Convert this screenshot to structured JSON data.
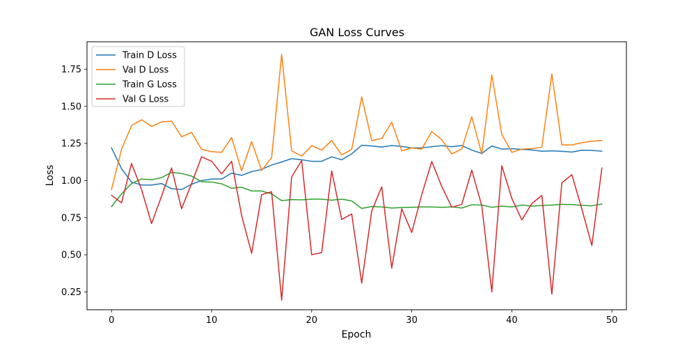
{
  "chart_data": {
    "type": "line",
    "title": "GAN Loss Curves",
    "xlabel": "Epoch",
    "ylabel": "Loss",
    "xlim": [
      -2.45,
      51.45
    ],
    "ylim": [
      0.13,
      1.935
    ],
    "xticks": [
      0,
      10,
      20,
      30,
      40,
      50
    ],
    "yticks": [
      0.25,
      0.5,
      0.75,
      1.0,
      1.25,
      1.5,
      1.75
    ],
    "ytick_labels": [
      "0.25",
      "0.50",
      "0.75",
      "1.00",
      "1.25",
      "1.50",
      "1.75"
    ],
    "grid": false,
    "legend_position": "top-left",
    "x": [
      0,
      1,
      2,
      3,
      4,
      5,
      6,
      7,
      8,
      9,
      10,
      11,
      12,
      13,
      14,
      15,
      16,
      17,
      18,
      19,
      20,
      21,
      22,
      23,
      24,
      25,
      26,
      27,
      28,
      29,
      30,
      31,
      32,
      33,
      34,
      35,
      36,
      37,
      38,
      39,
      40,
      41,
      42,
      43,
      44,
      45,
      46,
      47,
      48,
      49
    ],
    "series": [
      {
        "name": "Train D Loss",
        "color": "#1f77b4",
        "values": [
          1.22,
          1.08,
          0.99,
          0.97,
          0.97,
          0.98,
          0.945,
          0.94,
          0.975,
          1.0,
          1.01,
          1.01,
          1.05,
          1.035,
          1.06,
          1.075,
          1.105,
          1.125,
          1.148,
          1.14,
          1.13,
          1.13,
          1.16,
          1.14,
          1.18,
          1.238,
          1.233,
          1.226,
          1.236,
          1.23,
          1.22,
          1.22,
          1.228,
          1.235,
          1.228,
          1.236,
          1.205,
          1.183,
          1.233,
          1.212,
          1.215,
          1.21,
          1.206,
          1.198,
          1.2,
          1.197,
          1.192,
          1.205,
          1.203,
          1.198
        ]
      },
      {
        "name": "Val D Loss",
        "color": "#ff7f0e",
        "values": [
          0.94,
          1.21,
          1.37,
          1.41,
          1.365,
          1.395,
          1.4,
          1.295,
          1.325,
          1.21,
          1.195,
          1.19,
          1.29,
          1.065,
          1.262,
          1.068,
          1.155,
          1.85,
          1.2,
          1.165,
          1.235,
          1.205,
          1.27,
          1.173,
          1.21,
          1.563,
          1.27,
          1.283,
          1.393,
          1.2,
          1.22,
          1.212,
          1.33,
          1.275,
          1.18,
          1.212,
          1.43,
          1.178,
          1.712,
          1.31,
          1.19,
          1.212,
          1.215,
          1.225,
          1.718,
          1.24,
          1.24,
          1.255,
          1.265,
          1.27
        ]
      },
      {
        "name": "Train G Loss",
        "color": "#2ca02c",
        "values": [
          0.825,
          0.91,
          0.98,
          1.01,
          1.005,
          1.02,
          1.055,
          1.048,
          1.03,
          0.992,
          0.99,
          0.978,
          0.948,
          0.955,
          0.93,
          0.93,
          0.91,
          0.865,
          0.872,
          0.87,
          0.875,
          0.875,
          0.868,
          0.875,
          0.863,
          0.812,
          0.825,
          0.822,
          0.815,
          0.818,
          0.82,
          0.823,
          0.822,
          0.82,
          0.823,
          0.815,
          0.837,
          0.835,
          0.82,
          0.828,
          0.822,
          0.835,
          0.828,
          0.832,
          0.835,
          0.84,
          0.838,
          0.833,
          0.83,
          0.842
        ]
      },
      {
        "name": "Val G Loss",
        "color": "#d62728",
        "values": [
          0.9,
          0.85,
          1.115,
          0.94,
          0.71,
          0.895,
          1.085,
          0.81,
          0.98,
          1.16,
          1.13,
          1.045,
          1.13,
          0.765,
          0.51,
          0.905,
          0.925,
          0.195,
          1.025,
          1.135,
          0.5,
          0.515,
          1.065,
          0.738,
          0.775,
          0.31,
          0.795,
          0.958,
          0.41,
          0.81,
          0.65,
          0.905,
          1.128,
          0.96,
          0.82,
          0.84,
          1.07,
          0.83,
          0.25,
          1.1,
          0.88,
          0.735,
          0.845,
          0.9,
          0.235,
          0.985,
          1.04,
          0.808,
          0.563,
          1.085
        ]
      }
    ]
  }
}
